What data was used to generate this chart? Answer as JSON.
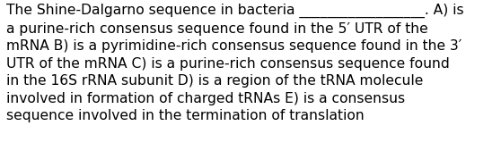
{
  "lines": [
    "The Shine-Dalgarno sequence in bacteria __________________. A) is",
    "a purine-rich consensus sequence found in the 5′ UTR of the",
    "mRNA B) is a pyrimidine-rich consensus sequence found in the 3′",
    "UTR of the mRNA C) is a purine-rich consensus sequence found",
    "in the 16S rRNA subunit D) is a region of the tRNA molecule",
    "involved in formation of charged tRNAs E) is a consensus",
    "sequence involved in the termination of translation"
  ],
  "background_color": "#ffffff",
  "text_color": "#000000",
  "font_size": 11.2,
  "figwidth": 5.58,
  "figheight": 1.88,
  "dpi": 100
}
